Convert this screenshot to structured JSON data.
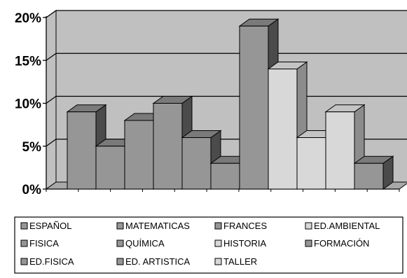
{
  "chart_data": {
    "type": "bar",
    "style": "3d-column",
    "categories": [
      "ESPAÑOL",
      "FISICA",
      "ED.FISICA",
      "MATEMATICAS",
      "QUÍMICA",
      "ED. ARTISTICA",
      "FRANCES",
      "HISTORIA",
      "TALLER",
      "ED.AMBIENTAL",
      "FORMACIÓN"
    ],
    "legend_order": [
      "ESPAÑOL",
      "MATEMATICAS",
      "FRANCES",
      "ED.AMBIENTAL",
      "FISICA",
      "QUÍMICA",
      "HISTORIA",
      "FORMACIÓN",
      "ED.FISICA",
      "ED. ARTISTICA",
      "TALLER"
    ],
    "values": [
      9,
      5,
      8,
      10,
      6,
      3,
      19,
      14,
      6,
      9,
      3
    ],
    "fill_types": [
      "dark",
      "dark",
      "dark",
      "dark",
      "dark",
      "dark",
      "dark",
      "light",
      "light",
      "light",
      "dark"
    ],
    "yticks": [
      "0%",
      "5%",
      "10%",
      "15%",
      "20%"
    ],
    "ylim": [
      0,
      20
    ],
    "grid": true,
    "legend_position": "bottom",
    "title": "",
    "xlabel": "",
    "ylabel": ""
  },
  "colors": {
    "wall": "#c0c0c0",
    "floor": "#a8a8a8",
    "dark_front": "#969696",
    "dark_top": "#7a7a7a",
    "dark_side": "#4b4b4b",
    "light_front": "#d8d8d8",
    "light_top": "#c4c4c4",
    "light_side": "#8c8c8c",
    "edge": "#000000"
  }
}
